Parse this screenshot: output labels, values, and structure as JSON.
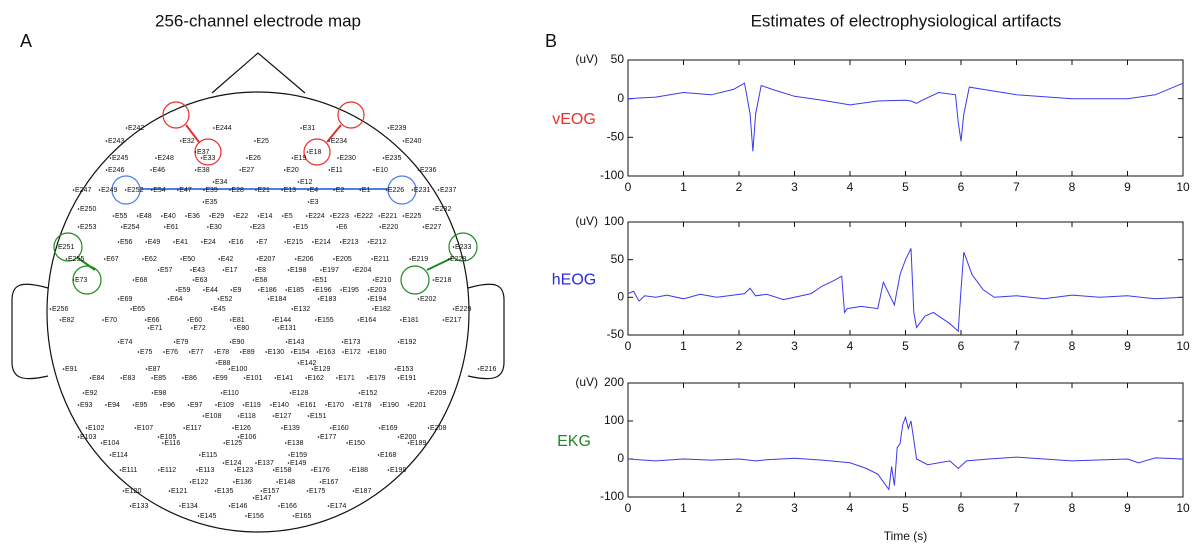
{
  "panel_a": {
    "label": "A",
    "title": "256-channel electrode map",
    "electrode_rows": [
      [
        "E242",
        "E244",
        "E31",
        "E239"
      ],
      [
        "E243",
        "E32",
        "E25",
        "E234",
        "E240"
      ],
      [
        "E37",
        "E18"
      ],
      [
        "E245",
        "E248",
        "E33",
        "E26",
        "E19",
        "E230",
        "E235"
      ],
      [
        "E246",
        "E46",
        "E38",
        "E27",
        "E20",
        "E11",
        "E10",
        "E236"
      ],
      [
        "E34",
        "E12"
      ],
      [
        "E247",
        "E249",
        "E252",
        "E54",
        "E47",
        "E39",
        "E28",
        "E21",
        "E13",
        "E4",
        "E2",
        "E1",
        "E226",
        "E231",
        "E237"
      ],
      [
        "E35",
        "E3"
      ],
      [
        "E250",
        "E232"
      ],
      [
        "E55",
        "E48",
        "E40",
        "E36",
        "E29",
        "E22",
        "E14",
        "E5",
        "E224",
        "E223",
        "E222",
        "E221",
        "E225"
      ],
      [
        "E253",
        "E254",
        "E61",
        "E30",
        "E23",
        "E15",
        "E6",
        "E220",
        "E227"
      ],
      [
        "E56",
        "E49",
        "E41",
        "E24",
        "E16",
        "E7",
        "E215",
        "E214",
        "E213",
        "E212"
      ],
      [
        "E251",
        "E233"
      ],
      [
        "E255",
        "E67",
        "E62",
        "E50",
        "E42",
        "E207",
        "E206",
        "E205",
        "E211",
        "E219",
        "E228"
      ],
      [
        "E57",
        "E43",
        "E17",
        "E8",
        "E198",
        "E197",
        "E204"
      ],
      [
        "E73",
        "E68",
        "E63",
        "E58",
        "E51",
        "E210",
        "E218"
      ],
      [
        "E59",
        "E44",
        "E9",
        "E186",
        "E185",
        "E196",
        "E195",
        "E203"
      ],
      [
        "E69",
        "E64",
        "E52",
        "E184",
        "E183",
        "E194",
        "E202"
      ],
      [
        "E256",
        "E65",
        "E45",
        "E132",
        "E182",
        "E229"
      ],
      [
        "E82",
        "E70",
        "E66",
        "E60",
        "E81",
        "E144",
        "E155",
        "E164",
        "E181",
        "E217"
      ],
      [
        "E71",
        "E72",
        "E80",
        "E131"
      ],
      [
        "E74",
        "E79",
        "E90",
        "E143",
        "E173",
        "E192"
      ],
      [
        "E75",
        "E76",
        "E77",
        "E78",
        "E89",
        "E130",
        "E154",
        "E163",
        "E172",
        "E180"
      ],
      [
        "E88",
        "E142"
      ],
      [
        "E91",
        "E87",
        "E100",
        "E129",
        "E153",
        "E216"
      ],
      [
        "E84",
        "E83",
        "E85",
        "E86",
        "E99",
        "E101",
        "E141",
        "E162",
        "E171",
        "E179",
        "E191"
      ],
      [
        "E92",
        "E98",
        "E110",
        "E128",
        "E152",
        "E209"
      ],
      [
        "E93",
        "E94",
        "E95",
        "E96",
        "E97",
        "E109",
        "E119",
        "E140",
        "E161",
        "E170",
        "E178",
        "E190",
        "E201"
      ],
      [
        "E108",
        "E118",
        "E127",
        "E151"
      ],
      [
        "E102",
        "E107",
        "E117",
        "E126",
        "E139",
        "E160",
        "E169",
        "E208"
      ],
      [
        "E103",
        "E105",
        "E106",
        "E177",
        "E200"
      ],
      [
        "E104",
        "E116",
        "E125",
        "E138",
        "E150",
        "E189"
      ],
      [
        "E114",
        "E115",
        "E159",
        "E168"
      ],
      [
        "E124",
        "E137",
        "E149"
      ],
      [
        "E111",
        "E112",
        "E113",
        "E123",
        "E158",
        "E176",
        "E188",
        "E199"
      ],
      [
        "E122",
        "E136",
        "E148",
        "E167"
      ],
      [
        "E120",
        "E121",
        "E135",
        "E157",
        "E175",
        "E187"
      ],
      [
        "E147"
      ],
      [
        "E133",
        "E134",
        "E146",
        "E166",
        "E174"
      ],
      [
        "E145",
        "E156",
        "E165"
      ]
    ]
  },
  "panel_b": {
    "label": "B",
    "title": "Estimates of electrophysiological artifacts"
  },
  "chart_data": [
    {
      "type": "line",
      "y_unit": "(uV)",
      "x": [
        0,
        0.5,
        1,
        1.5,
        1.9,
        2.1,
        2.2,
        2.25,
        2.3,
        2.4,
        2.6,
        3,
        3.5,
        4,
        4.5,
        5,
        5.1,
        5.2,
        5.3,
        5.6,
        5.9,
        5.95,
        6.0,
        6.05,
        6.15,
        6.4,
        7,
        8,
        9,
        9.5,
        10
      ],
      "series": [
        {
          "name": "vEOG",
          "color": "#3a3af0",
          "label_color": "#e8302a",
          "values": [
            0,
            2,
            8,
            5,
            12,
            20,
            -20,
            -68,
            -20,
            17,
            12,
            3,
            -2,
            -8,
            -3,
            -2,
            -3,
            -6,
            -2,
            8,
            5,
            -30,
            -55,
            -20,
            15,
            12,
            5,
            0,
            0,
            5,
            20
          ]
        }
      ],
      "xlim": [
        0,
        10
      ],
      "xticks": [
        0,
        1,
        2,
        3,
        4,
        5,
        6,
        7,
        8,
        9,
        10
      ],
      "ylim": [
        -100,
        50
      ],
      "yticks": [
        -100,
        -50,
        0,
        50
      ]
    },
    {
      "type": "line",
      "y_unit": "(uV)",
      "x": [
        0,
        0.1,
        0.2,
        0.3,
        0.5,
        0.7,
        1,
        1.3,
        1.6,
        1.9,
        2.1,
        2.2,
        2.3,
        2.5,
        2.8,
        3,
        3.3,
        3.5,
        3.7,
        3.85,
        3.9,
        3.95,
        4.2,
        4.5,
        4.6,
        4.7,
        4.8,
        4.9,
        5.0,
        5.1,
        5.15,
        5.2,
        5.35,
        5.5,
        5.7,
        5.8,
        5.95,
        6.0,
        6.05,
        6.2,
        6.4,
        6.6,
        7,
        7.5,
        8,
        8.5,
        9,
        9.5,
        10
      ],
      "series": [
        {
          "name": "hEOG",
          "color": "#3a3af0",
          "label_color": "#2a2ae0",
          "values": [
            5,
            8,
            -5,
            2,
            0,
            3,
            -2,
            4,
            0,
            3,
            5,
            12,
            2,
            4,
            -3,
            0,
            5,
            15,
            22,
            28,
            -20,
            -15,
            -12,
            -15,
            20,
            5,
            -10,
            30,
            50,
            65,
            -20,
            -40,
            -25,
            -20,
            -30,
            -35,
            -45,
            10,
            60,
            30,
            10,
            0,
            2,
            -2,
            3,
            0,
            2,
            -2,
            0
          ]
        }
      ],
      "xlim": [
        0,
        10
      ],
      "xticks": [
        0,
        1,
        2,
        3,
        4,
        5,
        6,
        7,
        8,
        9,
        10
      ],
      "ylim": [
        -50,
        100
      ],
      "yticks": [
        -50,
        0,
        50,
        100
      ]
    },
    {
      "type": "line",
      "y_unit": "(uV)",
      "xlabel": "Time (s)",
      "x": [
        0,
        0.5,
        1,
        1.5,
        2,
        2.3,
        2.5,
        3,
        3.5,
        4,
        4.3,
        4.5,
        4.6,
        4.7,
        4.75,
        4.8,
        4.85,
        4.9,
        4.95,
        5.0,
        5.05,
        5.1,
        5.2,
        5.4,
        5.8,
        5.95,
        6.1,
        6.5,
        7,
        8,
        9,
        9.2,
        9.5,
        10
      ],
      "series": [
        {
          "name": "EKG",
          "color": "#3a3af0",
          "label_color": "#1e8a1e",
          "values": [
            0,
            -5,
            0,
            -3,
            0,
            -5,
            -2,
            2,
            -3,
            -10,
            -25,
            -40,
            -60,
            -80,
            -20,
            -70,
            30,
            40,
            90,
            110,
            80,
            100,
            0,
            -15,
            -5,
            -25,
            -5,
            0,
            5,
            -5,
            0,
            -10,
            3,
            0
          ]
        }
      ],
      "xlim": [
        0,
        10
      ],
      "xticks": [
        0,
        1,
        2,
        3,
        4,
        5,
        6,
        7,
        8,
        9,
        10
      ],
      "ylim": [
        -100,
        200
      ],
      "yticks": [
        -100,
        0,
        100,
        200
      ]
    }
  ]
}
